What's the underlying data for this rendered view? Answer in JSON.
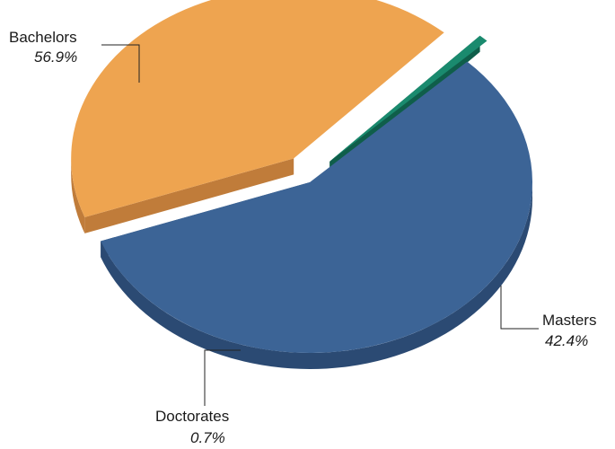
{
  "chart_data": {
    "type": "pie",
    "style": "3d-exploded",
    "slices": [
      {
        "label": "Bachelors",
        "value": 56.9,
        "value_label": "56.9%",
        "color": "#3c6496",
        "side_color": "#2b4a73"
      },
      {
        "label": "Masters",
        "value": 42.4,
        "value_label": "42.4%",
        "color": "#eea450",
        "side_color": "#c07c3a"
      },
      {
        "label": "Doctorates",
        "value": 0.7,
        "value_label": "0.7%",
        "color": "#1a8a6e",
        "side_color": "#0f5e4a"
      }
    ],
    "legend": "none",
    "labels": "outside with leader lines"
  }
}
